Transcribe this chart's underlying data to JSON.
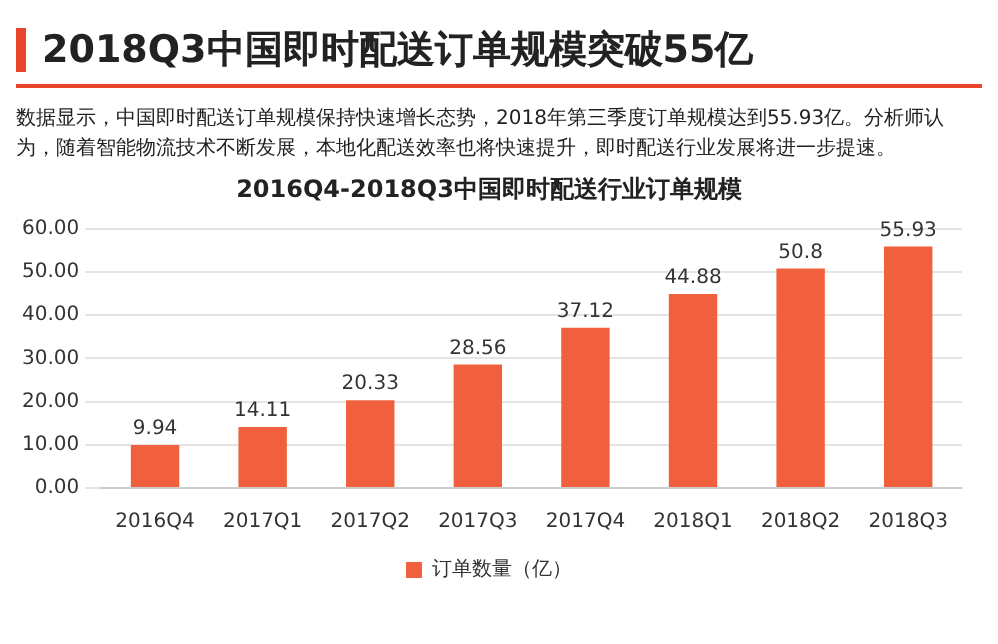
{
  "chart_data": {
    "type": "bar",
    "title": "2018Q3中国即时配送订单规模突破55亿",
    "subtitle": "2016Q4-2018Q3中国即时配送行业订单规模",
    "annotations": [
      "数据显示，中国即时配送订单规模保持快速增长态势，2018年第三季度订单规模达到55.93亿。分析师认为，随着智能物流技术不断发展，本地化配送效率也将快速提升，即时配送行业发展将进一步提速。"
    ],
    "categories": [
      "2016Q4",
      "2017Q1",
      "2017Q2",
      "2017Q3",
      "2017Q4",
      "2018Q1",
      "2018Q2",
      "2018Q3"
    ],
    "series": [
      {
        "name": "订单数量（亿）",
        "color": "#f0603c",
        "values": [
          9.94,
          14.11,
          20.33,
          28.56,
          37.12,
          44.88,
          50.8,
          55.93
        ]
      }
    ],
    "ylim": [
      0,
      60
    ],
    "yticks": [
      {
        "value": 0,
        "label": "0.00"
      },
      {
        "value": 10,
        "label": "10.00"
      },
      {
        "value": 20,
        "label": "20.00"
      },
      {
        "value": 30,
        "label": "30.00"
      },
      {
        "value": 40,
        "label": "40.00"
      },
      {
        "value": 50,
        "label": "50.00"
      },
      {
        "value": 60,
        "label": "60.00"
      }
    ],
    "grid": "y",
    "legend": "bottom",
    "data_labels": true
  }
}
